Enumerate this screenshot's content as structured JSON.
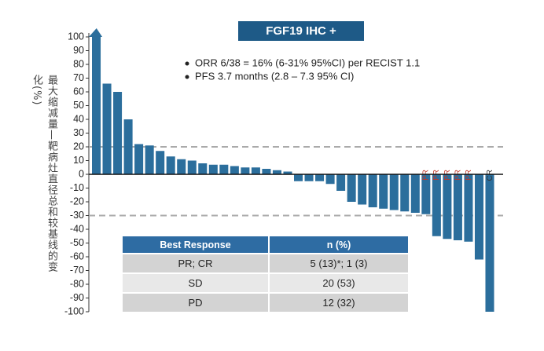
{
  "chart_data": {
    "type": "waterfall",
    "title": "FGF19 IHC +",
    "y_label": "最大缩减量—靶病灶直径总和较基线的变化(%)",
    "notes": [
      "ORR 6/38 = 16% (6-31% 95%CI) per RECIST 1.1",
      "PFS 3.7 months (2.8 – 7.3 95% CI)"
    ],
    "values": [
      100,
      66,
      60,
      40,
      22,
      21,
      17,
      13,
      11,
      10,
      8,
      7,
      7,
      6,
      5,
      5,
      4,
      3,
      2,
      -5,
      -5,
      -5,
      -7,
      -12,
      -20,
      -22,
      -24,
      -25,
      -26,
      -27,
      -28,
      -29,
      -45,
      -47,
      -48,
      -49,
      -62,
      -100
    ],
    "responses": [
      null,
      null,
      null,
      null,
      null,
      null,
      null,
      null,
      null,
      null,
      null,
      null,
      null,
      null,
      null,
      null,
      null,
      null,
      null,
      null,
      null,
      null,
      null,
      null,
      null,
      null,
      null,
      null,
      null,
      null,
      null,
      "PR",
      "PR",
      "PR",
      "PR",
      "PR",
      null,
      "CR"
    ],
    "color": "#2b6e9c",
    "reference_lines": [
      20,
      -30
    ],
    "ylim": [
      -100,
      100
    ],
    "yticks": [
      -100,
      -90,
      -80,
      -70,
      -60,
      -50,
      -40,
      -30,
      -20,
      -10,
      0,
      10,
      20,
      30,
      40,
      50,
      60,
      70,
      80,
      90,
      100
    ],
    "table": {
      "header": [
        "Best Response",
        "n (%)"
      ],
      "rows": [
        [
          "PR; CR",
          "5 (13)*; 1 (3)"
        ],
        [
          "SD",
          "20 (53)"
        ],
        [
          "PD",
          "12 (32)"
        ]
      ]
    }
  }
}
